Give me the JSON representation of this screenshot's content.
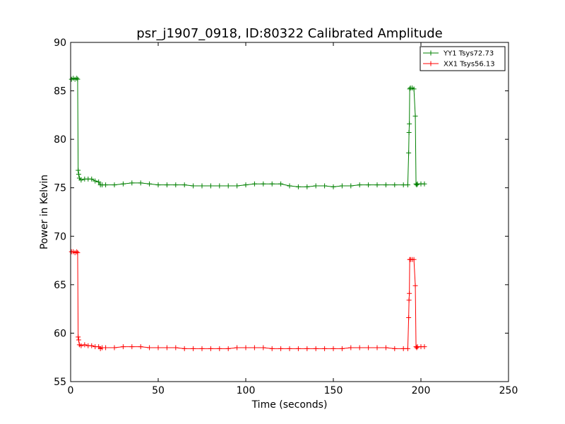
{
  "chart_data": {
    "type": "line",
    "title": "psr_j1907_0918, ID:80322 Calibrated Amplitude",
    "xlabel": "Time (seconds)",
    "ylabel": "Power in Kelvin",
    "xlim": [
      0,
      250
    ],
    "ylim": [
      55,
      90
    ],
    "xticks": [
      0,
      50,
      100,
      150,
      200,
      250
    ],
    "yticks": [
      55,
      60,
      65,
      70,
      75,
      80,
      85,
      90
    ],
    "xtick_labels": [
      "0",
      "50",
      "100",
      "150",
      "200",
      "250"
    ],
    "ytick_labels": [
      "55",
      "60",
      "65",
      "70",
      "75",
      "80",
      "85",
      "90"
    ],
    "grid": false,
    "legend_position": "top-right",
    "marker": "+",
    "series": [
      {
        "name": "YY1 Tsys72.73",
        "color": "#008000",
        "x": [
          0.5,
          1.5,
          2.5,
          3.5,
          4.0,
          4.3,
          4.6,
          5.0,
          6,
          8,
          10,
          12,
          14,
          16,
          17,
          18,
          20,
          25,
          30,
          35,
          40,
          45,
          50,
          55,
          60,
          65,
          70,
          75,
          80,
          85,
          90,
          95,
          100,
          105,
          110,
          115,
          120,
          125,
          130,
          135,
          140,
          145,
          150,
          155,
          160,
          165,
          170,
          175,
          180,
          185,
          190,
          192.5,
          193.0,
          193.2,
          193.4,
          193.6,
          194,
          195,
          196,
          196.8,
          197.2,
          197.6,
          198,
          200,
          202
        ],
        "y": [
          86.2,
          86.3,
          86.2,
          86.3,
          86.2,
          76.8,
          76.4,
          76.0,
          75.8,
          75.9,
          75.9,
          75.9,
          75.7,
          75.6,
          75.3,
          75.3,
          75.3,
          75.3,
          75.4,
          75.5,
          75.5,
          75.4,
          75.3,
          75.3,
          75.3,
          75.3,
          75.2,
          75.2,
          75.2,
          75.2,
          75.2,
          75.2,
          75.3,
          75.4,
          75.4,
          75.4,
          75.4,
          75.2,
          75.1,
          75.1,
          75.2,
          75.2,
          75.1,
          75.2,
          75.2,
          75.3,
          75.3,
          75.3,
          75.3,
          75.3,
          75.3,
          75.3,
          78.6,
          80.7,
          81.6,
          85.2,
          85.3,
          85.3,
          85.2,
          82.4,
          75.4,
          75.3,
          75.4,
          75.4,
          75.4
        ]
      },
      {
        "name": "XX1 Tsys56.13",
        "color": "#ff0000",
        "x": [
          0.5,
          1.5,
          2.5,
          3.5,
          4.0,
          4.3,
          4.6,
          5.0,
          6,
          8,
          10,
          12,
          14,
          16,
          17,
          18,
          20,
          25,
          30,
          35,
          40,
          45,
          50,
          55,
          60,
          65,
          70,
          75,
          80,
          85,
          90,
          95,
          100,
          105,
          110,
          115,
          120,
          125,
          130,
          135,
          140,
          145,
          150,
          155,
          160,
          165,
          170,
          175,
          180,
          185,
          190,
          192.5,
          193.0,
          193.2,
          193.4,
          193.6,
          194,
          195,
          196,
          196.8,
          197.2,
          197.6,
          198,
          200,
          202
        ],
        "y": [
          68.4,
          68.4,
          68.3,
          68.4,
          68.3,
          59.6,
          59.3,
          58.8,
          58.7,
          58.8,
          58.7,
          58.7,
          58.6,
          58.6,
          58.4,
          58.5,
          58.5,
          58.5,
          58.6,
          58.6,
          58.6,
          58.5,
          58.5,
          58.5,
          58.5,
          58.4,
          58.4,
          58.4,
          58.4,
          58.4,
          58.4,
          58.5,
          58.5,
          58.5,
          58.5,
          58.4,
          58.4,
          58.4,
          58.4,
          58.4,
          58.4,
          58.4,
          58.4,
          58.4,
          58.5,
          58.5,
          58.5,
          58.5,
          58.5,
          58.4,
          58.4,
          58.4,
          61.6,
          63.4,
          64.1,
          67.6,
          67.6,
          67.6,
          67.6,
          64.9,
          58.6,
          58.5,
          58.6,
          58.6,
          58.6
        ]
      }
    ]
  }
}
